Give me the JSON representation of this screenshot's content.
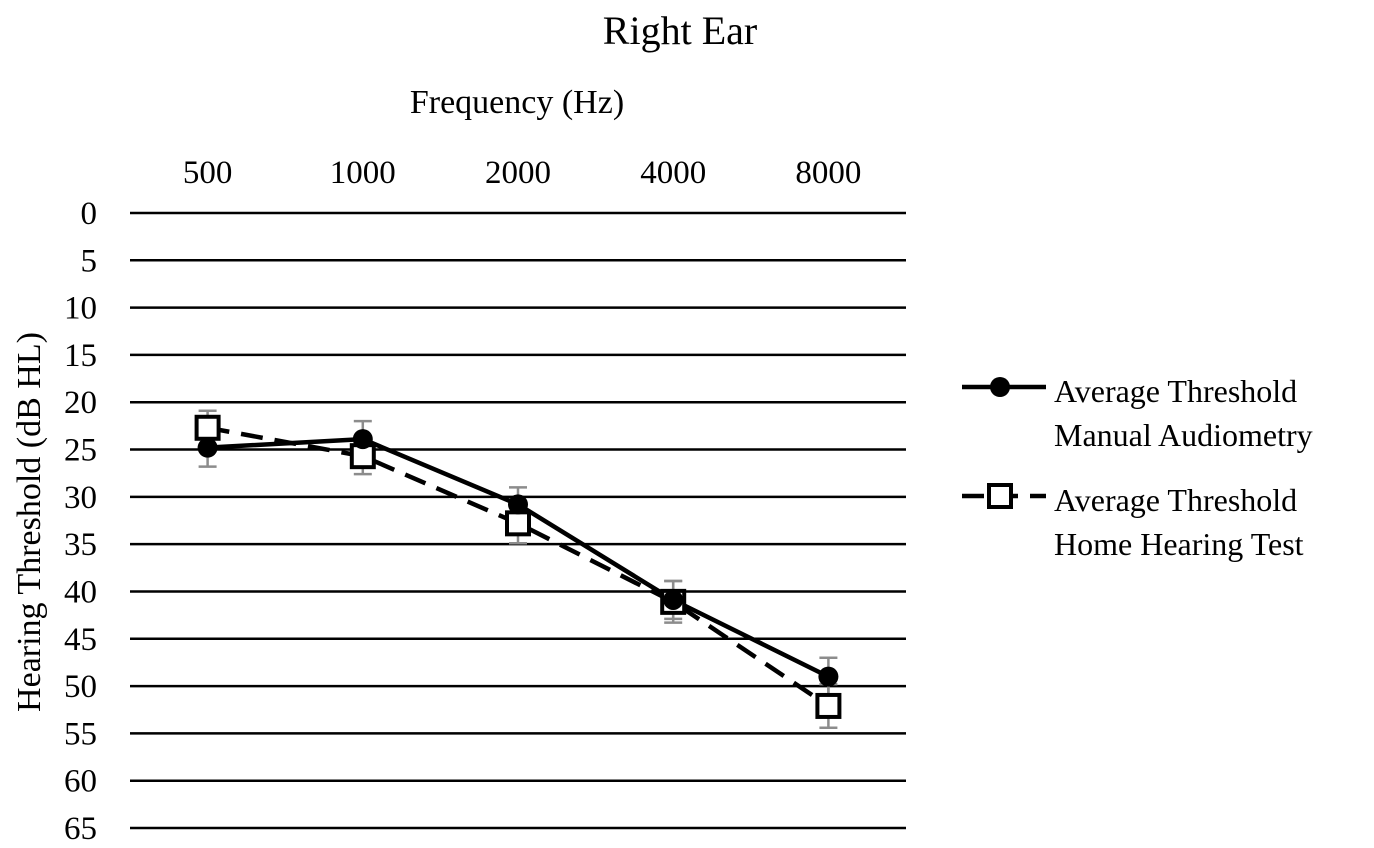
{
  "chart_data": {
    "type": "line",
    "title": "Right Ear",
    "xlabel": "Frequency (Hz)",
    "ylabel": "Hearing Threshold (dB HL)",
    "categories": [
      "500",
      "1000",
      "2000",
      "4000",
      "8000"
    ],
    "yticks": [
      "0",
      "5",
      "10",
      "15",
      "20",
      "25",
      "30",
      "35",
      "40",
      "45",
      "50",
      "55",
      "60",
      "65"
    ],
    "ylim": [
      0,
      65
    ],
    "y_inverted": true,
    "x_axis_position": "top",
    "grid": true,
    "legend_position": "right",
    "series": [
      {
        "name": "Average Threshold Manual Audiometry",
        "legend_lines": [
          "Average Threshold",
          "Manual Audiometry"
        ],
        "line_style": "solid",
        "marker": "filled-circle",
        "values": [
          24.8,
          23.9,
          30.8,
          40.9,
          49.0
        ],
        "error": [
          2.0,
          1.9,
          1.8,
          2.0,
          2.0
        ]
      },
      {
        "name": "Average Threshold Home Hearing Test",
        "legend_lines": [
          "Average Threshold",
          "Home Hearing Test"
        ],
        "line_style": "dashed",
        "marker": "open-square",
        "values": [
          22.7,
          25.7,
          32.8,
          41.1,
          52.1
        ],
        "error": [
          1.8,
          1.9,
          2.1,
          2.2,
          2.3
        ]
      }
    ],
    "colors": {
      "line": "#000000",
      "grid": "#000000",
      "error_bar": "#8c8c8c"
    }
  }
}
